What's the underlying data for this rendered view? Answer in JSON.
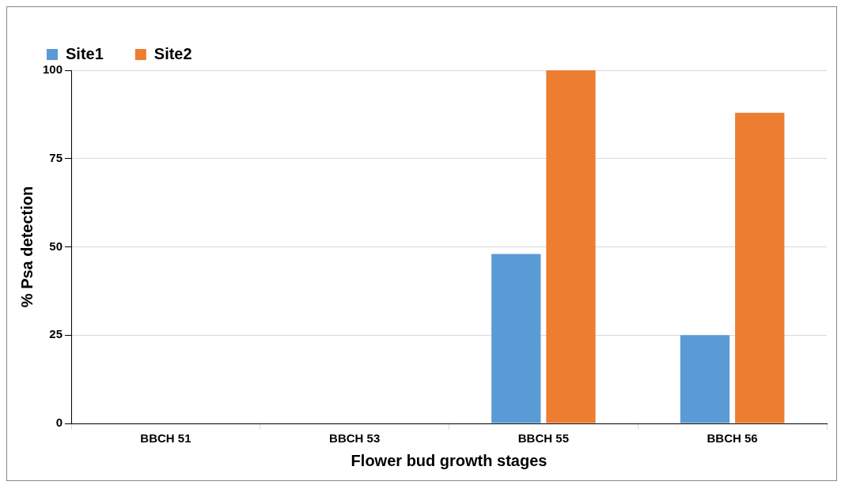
{
  "chart_data": {
    "type": "bar",
    "xlabel": "Flower bud growth stages",
    "ylabel": "% Psa detection",
    "categories": [
      "BBCH 51",
      "BBCH 53",
      "BBCH 55",
      "BBCH 56"
    ],
    "series": [
      {
        "name": "Site1",
        "color": "#5b9bd5",
        "values": [
          0,
          0,
          48,
          25
        ]
      },
      {
        "name": "Site2",
        "color": "#ed7d31",
        "values": [
          0,
          0,
          100,
          88
        ]
      }
    ],
    "ylim": [
      0,
      100
    ],
    "yticks": [
      0,
      25,
      50,
      75,
      100
    ],
    "grid": "y",
    "legend": "top left"
  }
}
